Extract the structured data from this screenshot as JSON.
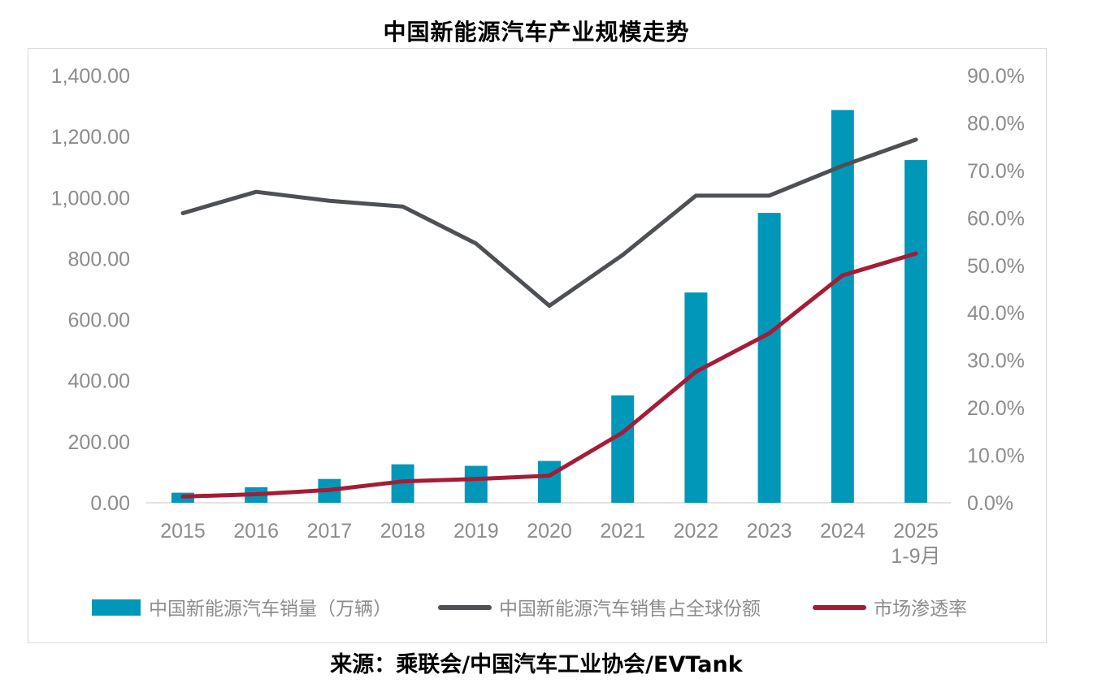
{
  "chart_data": {
    "type": "bar",
    "title": "中国新能源汽车产业规模走势",
    "categories": [
      "2015",
      "2016",
      "2017",
      "2018",
      "2019",
      "2020",
      "2021",
      "2022",
      "2023",
      "2024",
      "2025\n1-9月"
    ],
    "category_labels": [
      [
        "2015"
      ],
      [
        "2016"
      ],
      [
        "2017"
      ],
      [
        "2018"
      ],
      [
        "2019"
      ],
      [
        "2020"
      ],
      [
        "2021"
      ],
      [
        "2022"
      ],
      [
        "2023"
      ],
      [
        "2024"
      ],
      [
        "2025",
        "1-9月"
      ]
    ],
    "series": [
      {
        "name": "中国新能源汽车销量（万辆）",
        "type": "bar",
        "axis": "left",
        "color": "#0097b8",
        "values": [
          33,
          51,
          78,
          126,
          121,
          137,
          352,
          689,
          950,
          1287,
          1123
        ]
      },
      {
        "name": "中国新能源汽车销售占全球份额",
        "type": "line",
        "axis": "right",
        "color": "#4d5054",
        "values": [
          61.0,
          65.5,
          63.6,
          62.4,
          54.6,
          41.5,
          52.2,
          64.7,
          64.7,
          71.0,
          76.5
        ]
      },
      {
        "name": "市场渗透率",
        "type": "line",
        "axis": "right",
        "color": "#a51c36",
        "values": [
          1.3,
          1.8,
          2.7,
          4.5,
          5.0,
          5.7,
          14.8,
          27.6,
          35.7,
          47.9,
          52.5
        ]
      }
    ],
    "y_left": {
      "min": 0,
      "max": 1400,
      "ticks": [
        "0.00",
        "200.00",
        "400.00",
        "600.00",
        "800.00",
        "1,000.00",
        "1,200.00",
        "1,400.00"
      ]
    },
    "y_right": {
      "min": 0,
      "max": 90,
      "ticks": [
        "0.0%",
        "10.0%",
        "20.0%",
        "30.0%",
        "40.0%",
        "50.0%",
        "60.0%",
        "70.0%",
        "80.0%",
        "90.0%"
      ]
    },
    "gridlines": false,
    "legend_position": "bottom"
  },
  "source": "来源：乘联会/中国汽车工业协会/EVTank"
}
